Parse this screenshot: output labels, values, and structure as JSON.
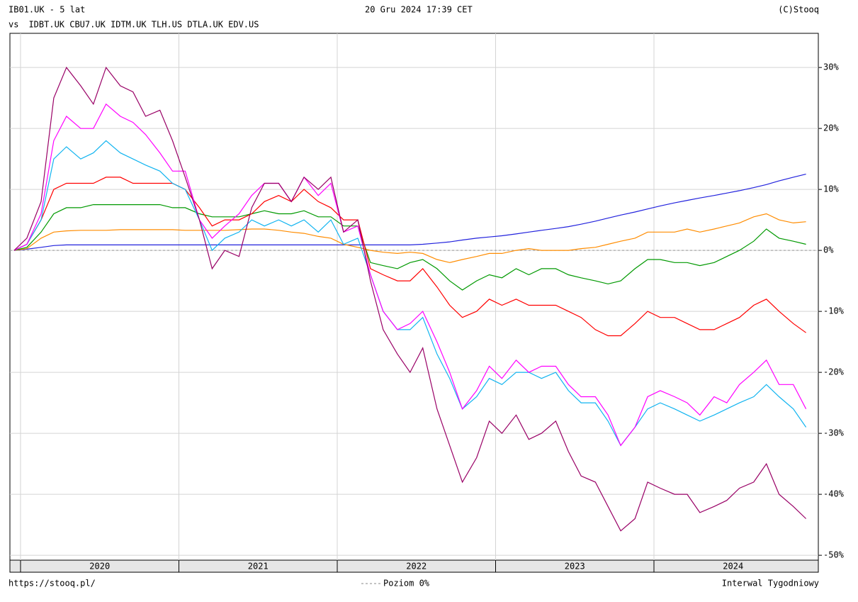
{
  "chart_data": {
    "type": "line",
    "subtitle": "- 5 lat",
    "vs_label": "vs",
    "date": "20 Gru 2024 17:39 CET",
    "copyright": "(C)Stooq",
    "footer_left": "https://stooq.pl/",
    "zero_line_label": "Poziom 0%",
    "footer_right": "Interwal Tygodniowy",
    "grid": true,
    "xlim": [
      2019.933,
      2025.038
    ],
    "xticks": [
      2020,
      2021,
      2022,
      2023,
      2024
    ],
    "ylim": [
      -50.8,
      35.6
    ],
    "yticks": [
      {
        "value": -50,
        "label": "-50%"
      },
      {
        "value": -40,
        "label": "-40%"
      },
      {
        "value": -30,
        "label": "-30%"
      },
      {
        "value": -20,
        "label": "-20%"
      },
      {
        "value": -10,
        "label": "-10%"
      },
      {
        "value": 0,
        "label": "0%"
      },
      {
        "value": 10,
        "label": "10%"
      },
      {
        "value": 20,
        "label": "20%"
      },
      {
        "value": 30,
        "label": "30%"
      }
    ],
    "x": [
      2019.96,
      2020.04,
      2020.13,
      2020.21,
      2020.29,
      2020.38,
      2020.46,
      2020.54,
      2020.63,
      2020.71,
      2020.79,
      2020.88,
      2020.96,
      2021.04,
      2021.13,
      2021.21,
      2021.29,
      2021.38,
      2021.46,
      2021.54,
      2021.63,
      2021.71,
      2021.79,
      2021.88,
      2021.96,
      2022.04,
      2022.13,
      2022.21,
      2022.29,
      2022.38,
      2022.46,
      2022.54,
      2022.63,
      2022.71,
      2022.79,
      2022.88,
      2022.96,
      2023.04,
      2023.13,
      2023.21,
      2023.29,
      2023.38,
      2023.46,
      2023.54,
      2023.63,
      2023.71,
      2023.79,
      2023.88,
      2023.96,
      2024.04,
      2024.13,
      2024.21,
      2024.29,
      2024.38,
      2024.46,
      2024.54,
      2024.63,
      2024.71,
      2024.79,
      2024.88,
      2024.96
    ],
    "series": [
      {
        "name": "IB01.UK",
        "color": "#2222dd",
        "values": [
          0,
          0.2,
          0.5,
          0.8,
          0.9,
          0.9,
          0.9,
          0.9,
          0.9,
          0.9,
          0.9,
          0.9,
          0.9,
          0.9,
          0.9,
          0.9,
          0.9,
          0.9,
          0.9,
          0.9,
          0.9,
          0.9,
          0.9,
          0.9,
          0.9,
          0.9,
          0.9,
          0.9,
          0.9,
          0.9,
          0.9,
          1.0,
          1.2,
          1.4,
          1.7,
          2.0,
          2.2,
          2.4,
          2.7,
          3.0,
          3.3,
          3.6,
          3.9,
          4.3,
          4.8,
          5.3,
          5.8,
          6.3,
          6.8,
          7.3,
          7.8,
          8.2,
          8.6,
          9.0,
          9.4,
          9.8,
          10.3,
          10.8,
          11.4,
          12.0,
          12.5
        ]
      },
      {
        "name": "IDBT.UK",
        "color": "#ff8c00",
        "values": [
          0,
          0.3,
          2,
          3,
          3.2,
          3.3,
          3.3,
          3.3,
          3.4,
          3.4,
          3.4,
          3.4,
          3.4,
          3.3,
          3.3,
          3.3,
          3.3,
          3.4,
          3.5,
          3.5,
          3.3,
          3,
          2.8,
          2.3,
          2,
          1,
          0.5,
          0,
          -0.3,
          -0.5,
          -0.3,
          -0.5,
          -1.5,
          -2,
          -1.5,
          -1,
          -0.5,
          -0.5,
          0,
          0.3,
          0,
          0,
          0,
          0.3,
          0.5,
          1,
          1.5,
          2,
          3,
          3,
          3,
          3.5,
          3,
          3.5,
          4,
          4.5,
          5.5,
          6,
          5,
          4.5,
          4.7
        ]
      },
      {
        "name": "CBU7.UK",
        "color": "#009900",
        "values": [
          0,
          0.5,
          3,
          6,
          7,
          7,
          7.5,
          7.5,
          7.5,
          7.5,
          7.5,
          7.5,
          7,
          7,
          6,
          5.5,
          5.5,
          5.5,
          6,
          6.5,
          6,
          6,
          6.5,
          5.5,
          5.5,
          4,
          4,
          -2,
          -2.5,
          -3,
          -2,
          -1.5,
          -3,
          -5,
          -6.5,
          -5,
          -4,
          -4.5,
          -3,
          -4,
          -3,
          -3,
          -4,
          -4.5,
          -5,
          -5.5,
          -5,
          -3,
          -1.5,
          -1.5,
          -2,
          -2,
          -2.5,
          -2,
          -1,
          0,
          1.5,
          3.5,
          2,
          1.5,
          1
        ]
      },
      {
        "name": "IDTM.UK",
        "color": "#ff0000",
        "values": [
          0,
          1,
          5,
          10,
          11,
          11,
          11,
          12,
          12,
          11,
          11,
          11,
          11,
          10,
          7,
          4,
          5,
          5,
          6,
          8,
          9,
          8,
          10,
          8,
          7,
          5,
          5,
          -3,
          -4,
          -5,
          -5,
          -3,
          -6,
          -9,
          -11,
          -10,
          -8,
          -9,
          -8,
          -9,
          -9,
          -9,
          -10,
          -11,
          -13,
          -14,
          -14,
          -12,
          -10,
          -11,
          -11,
          -12,
          -13,
          -13,
          -12,
          -11,
          -9,
          -8,
          -10,
          -12,
          -13.5
        ]
      },
      {
        "name": "TLH.US",
        "color": "#11b4f0",
        "values": [
          0,
          1,
          5,
          15,
          17,
          15,
          16,
          18,
          16,
          15,
          14,
          13,
          11,
          10,
          5,
          0,
          2,
          3,
          5,
          4,
          5,
          4,
          5,
          3,
          5,
          1,
          2,
          -4,
          -10,
          -13,
          -13,
          -11,
          -17,
          -21,
          -26,
          -24,
          -21,
          -22,
          -20,
          -20,
          -21,
          -20,
          -23,
          -25,
          -25,
          -28,
          -32,
          -29,
          -26,
          -25,
          -26,
          -27,
          -28,
          -27,
          -26,
          -25,
          -24,
          -22,
          -24,
          -26,
          -29
        ]
      },
      {
        "name": "DTLA.UK",
        "color": "#ff00ff",
        "values": [
          0,
          1,
          6,
          18,
          22,
          20,
          20,
          24,
          22,
          21,
          19,
          16,
          13,
          13,
          5,
          2,
          4,
          6,
          9,
          11,
          11,
          8,
          12,
          9,
          11,
          3,
          4,
          -4,
          -10,
          -13,
          -12,
          -10,
          -15,
          -20,
          -26,
          -23,
          -19,
          -21,
          -18,
          -20,
          -19,
          -19,
          -22,
          -24,
          -24,
          -27,
          -32,
          -29,
          -24,
          -23,
          -24,
          -25,
          -27,
          -24,
          -25,
          -22,
          -20,
          -18,
          -22,
          -22,
          -26
        ]
      },
      {
        "name": "EDV.US",
        "color": "#990066",
        "values": [
          0,
          2,
          8,
          25,
          30,
          27,
          24,
          30,
          27,
          26,
          22,
          23,
          18,
          12,
          5,
          -3,
          0,
          -1,
          7,
          11,
          11,
          8,
          12,
          10,
          12,
          3,
          5,
          -5,
          -13,
          -17,
          -20,
          -16,
          -26,
          -32,
          -38,
          -34,
          -28,
          -30,
          -27,
          -31,
          -30,
          -28,
          -33,
          -37,
          -38,
          -42,
          -46,
          -44,
          -38,
          -39,
          -40,
          -40,
          -43,
          -42,
          -41,
          -39,
          -38,
          -35,
          -40,
          -42,
          -44
        ]
      }
    ]
  }
}
